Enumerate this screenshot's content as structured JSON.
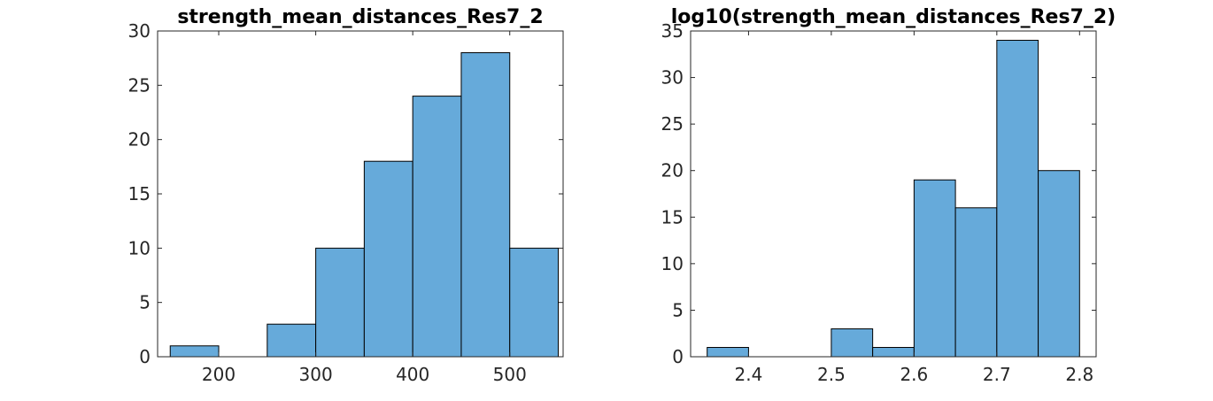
{
  "chart_data": [
    {
      "type": "bar",
      "subtype": "histogram",
      "title": "strength_mean_distances_Res7_2",
      "xlabel": "",
      "ylabel": "",
      "bin_edges": [
        150,
        200,
        250,
        300,
        350,
        400,
        450,
        500,
        550
      ],
      "values": [
        1,
        0,
        3,
        10,
        18,
        24,
        28,
        10
      ],
      "xlim": [
        137,
        555
      ],
      "ylim": [
        0,
        30
      ],
      "xticks": [
        200,
        300,
        400,
        500
      ],
      "yticks": [
        0,
        5,
        10,
        15,
        20,
        25,
        30
      ],
      "grid": false,
      "bar_color": "#66AADA"
    },
    {
      "type": "bar",
      "subtype": "histogram",
      "title": "log10(strength_mean_distances_Res7_2)",
      "xlabel": "",
      "ylabel": "",
      "bin_edges": [
        2.35,
        2.4,
        2.45,
        2.5,
        2.55,
        2.6,
        2.65,
        2.7,
        2.75,
        2.8
      ],
      "values": [
        1,
        0,
        0,
        3,
        1,
        19,
        16,
        34,
        20
      ],
      "xlim": [
        2.33,
        2.82
      ],
      "ylim": [
        0,
        35
      ],
      "xticks": [
        2.4,
        2.5,
        2.6,
        2.7,
        2.8
      ],
      "yticks": [
        0,
        5,
        10,
        15,
        20,
        25,
        30,
        35
      ],
      "grid": false,
      "bar_color": "#66AADA"
    }
  ]
}
